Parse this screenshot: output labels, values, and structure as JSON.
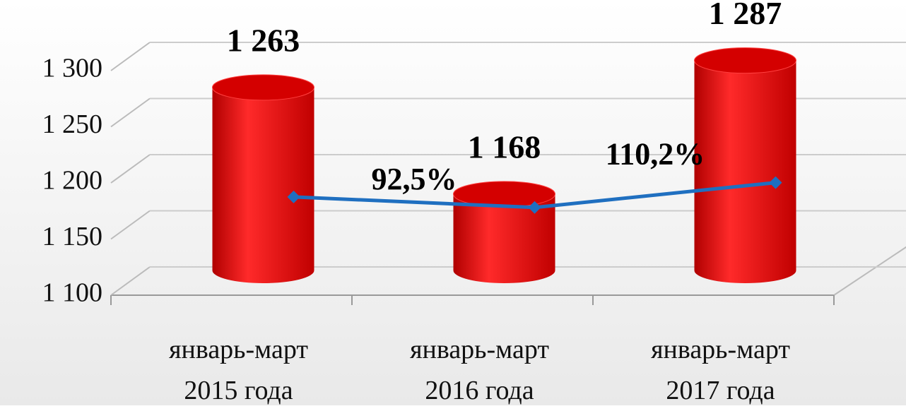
{
  "chart_data": {
    "type": "bar",
    "categories": [
      "январь-март\n2015 года",
      "январь-март\n2016 года",
      "январь-март\n2017 года"
    ],
    "series": [
      {
        "type": "bar",
        "color": "#e00000",
        "values": [
          1263,
          1168,
          1287
        ],
        "value_labels": [
          "1 263",
          "1 168",
          "1 287"
        ]
      },
      {
        "type": "line",
        "axis": "y2",
        "color": "#1f6fc0",
        "values": [
          100,
          92.5,
          110.2
        ],
        "value_labels": [
          null,
          "92,5%",
          "110,2%"
        ]
      }
    ],
    "ylim": [
      1100,
      1300
    ],
    "yticks": [
      {
        "value": 1100,
        "label": "1 100"
      },
      {
        "value": 1150,
        "label": "1 150"
      },
      {
        "value": 1200,
        "label": "1 200"
      },
      {
        "value": 1250,
        "label": "1 250"
      },
      {
        "value": 1300,
        "label": "1 300"
      }
    ],
    "y2lim": [
      30,
      190
    ],
    "grid": true
  }
}
